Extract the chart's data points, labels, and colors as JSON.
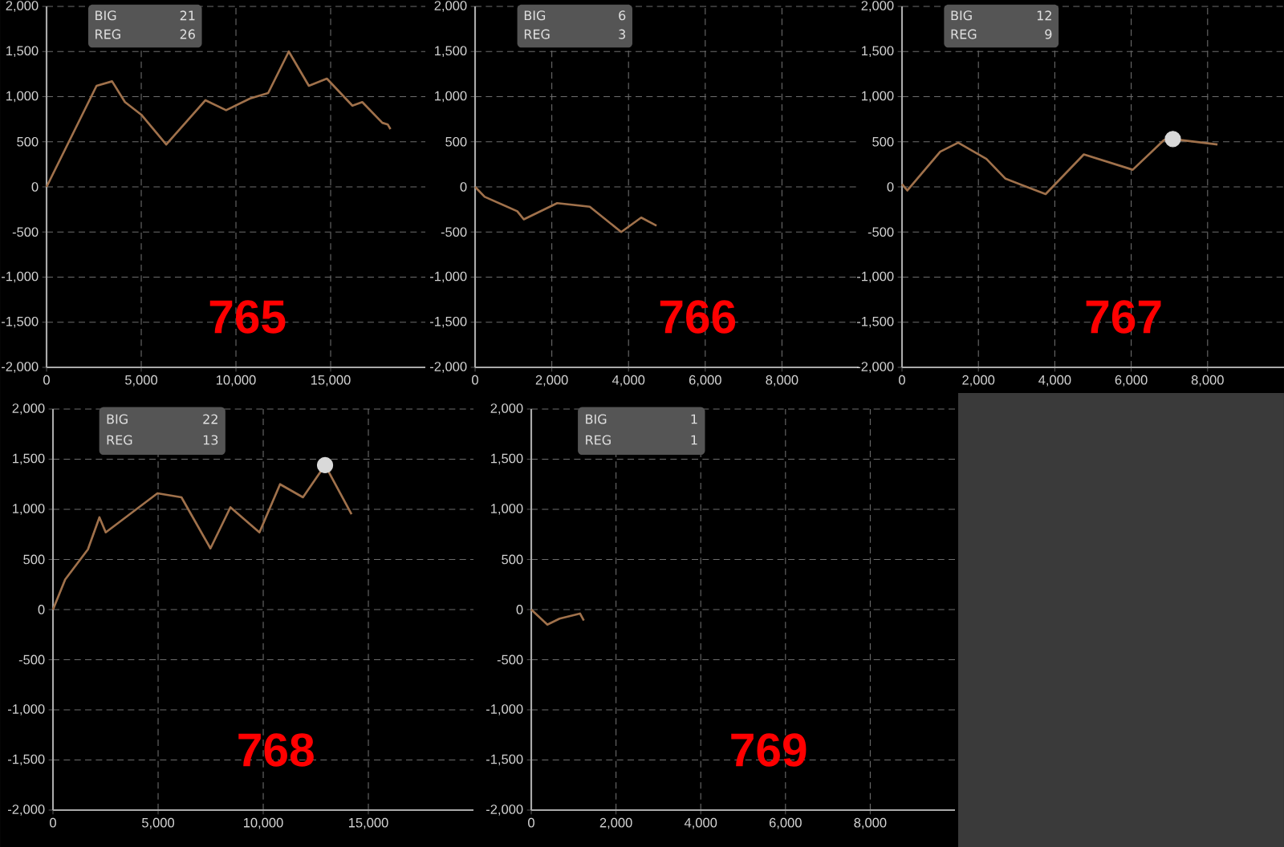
{
  "chart_data": [
    {
      "type": "line",
      "title": "765",
      "annotations": [
        "BIG",
        "21",
        "REG",
        "26"
      ],
      "grid": true,
      "xlim": [
        0,
        20000
      ],
      "xticks": [
        0,
        {
          "value": 5000,
          "label": "5,000"
        },
        {
          "value": 10000,
          "label": "10,000"
        },
        {
          "value": 15000,
          "label": "15,000"
        }
      ],
      "ylim": [
        -2000,
        2000
      ],
      "yticks": [
        {
          "value": -2000,
          "label": "-2,000"
        },
        {
          "value": -1500,
          "label": "-1,500"
        },
        {
          "value": -1000,
          "label": "-1,000"
        },
        -500,
        0,
        500,
        {
          "value": 1000,
          "label": "1,000"
        },
        {
          "value": 1500,
          "label": "1,500"
        },
        {
          "value": 2000,
          "label": "2,000"
        }
      ],
      "series": [
        {
          "color": "#a0714b",
          "x": [
            0,
            2640,
            3460,
            4140,
            5000,
            6320,
            8390,
            9480,
            10750,
            11700,
            12790,
            13850,
            14800,
            16150,
            16670,
            17730,
            18020,
            18160
          ],
          "values": [
            0,
            1120,
            1170,
            940,
            800,
            470,
            960,
            850,
            980,
            1040,
            1500,
            1120,
            1200,
            900,
            940,
            710,
            690,
            640
          ]
        }
      ]
    },
    {
      "type": "line",
      "title": "766",
      "annotations": [
        "BIG",
        "6",
        "REG",
        "3"
      ],
      "grid": true,
      "xlim": [
        0,
        10000
      ],
      "xticks": [
        0,
        {
          "value": 2000,
          "label": "2,000"
        },
        {
          "value": 4000,
          "label": "4,000"
        },
        {
          "value": 6000,
          "label": "6,000"
        },
        {
          "value": 8000,
          "label": "8,000"
        }
      ],
      "ylim": [
        -2000,
        2000
      ],
      "yticks": [
        {
          "value": -2000,
          "label": "-2,000"
        },
        {
          "value": -1500,
          "label": "-1,500"
        },
        {
          "value": -1000,
          "label": "-1,000"
        },
        -500,
        0,
        500,
        {
          "value": 1000,
          "label": "1,000"
        },
        {
          "value": 1500,
          "label": "1,500"
        },
        {
          "value": 2000,
          "label": "2,000"
        }
      ],
      "series": [
        {
          "color": "#a0714b",
          "x": [
            0,
            250,
            1100,
            1270,
            2140,
            2990,
            3810,
            4330,
            4730
          ],
          "values": [
            0,
            -110,
            -270,
            -360,
            -180,
            -220,
            -500,
            -340,
            -430
          ]
        }
      ]
    },
    {
      "type": "line",
      "title": "767",
      "annotations": [
        "BIG",
        "12",
        "REG",
        "9"
      ],
      "grid": true,
      "xlim": [
        0,
        10000
      ],
      "xticks": [
        0,
        {
          "value": 2000,
          "label": "2,000"
        },
        {
          "value": 4000,
          "label": "4,000"
        },
        {
          "value": 6000,
          "label": "6,000"
        },
        {
          "value": 8000,
          "label": "8,000"
        }
      ],
      "ylim": [
        -2000,
        2000
      ],
      "yticks": [
        {
          "value": -2000,
          "label": "-2,000"
        },
        {
          "value": -1500,
          "label": "-1,500"
        },
        {
          "value": -1000,
          "label": "-1,000"
        },
        -500,
        0,
        500,
        {
          "value": 1000,
          "label": "1,000"
        },
        {
          "value": 1500,
          "label": "1,500"
        },
        {
          "value": 2000,
          "label": "2,000"
        }
      ],
      "series": [
        {
          "color": "#a0714b",
          "x": [
            0,
            140,
            1000,
            1470,
            2210,
            2710,
            3760,
            4760,
            6040,
            6860,
            7090,
            8260
          ],
          "values": [
            30,
            -40,
            390,
            490,
            310,
            90,
            -80,
            360,
            190,
            520,
            530,
            470
          ]
        },
        {
          "type": "scatter",
          "color": "#d9d9d9",
          "x": [
            7090
          ],
          "values": [
            530
          ]
        }
      ]
    },
    {
      "type": "line",
      "title": "768",
      "annotations": [
        "BIG",
        "22",
        "REG",
        "13"
      ],
      "grid": true,
      "xlim": [
        0,
        20000
      ],
      "xticks": [
        0,
        {
          "value": 5000,
          "label": "5,000"
        },
        {
          "value": 10000,
          "label": "10,000"
        },
        {
          "value": 15000,
          "label": "15,000"
        }
      ],
      "ylim": [
        -2000,
        2000
      ],
      "yticks": [
        {
          "value": -2000,
          "label": "-2,000"
        },
        {
          "value": -1500,
          "label": "-1,500"
        },
        {
          "value": -1000,
          "label": "-1,000"
        },
        -500,
        0,
        500,
        {
          "value": 1000,
          "label": "1,000"
        },
        {
          "value": 1500,
          "label": "1,500"
        },
        {
          "value": 2000,
          "label": "2,000"
        }
      ],
      "series": [
        {
          "color": "#a0714b",
          "x": [
            0,
            580,
            1660,
            2210,
            2510,
            4970,
            6110,
            7490,
            8440,
            9820,
            10800,
            11890,
            12940,
            14200
          ],
          "values": [
            0,
            300,
            600,
            920,
            770,
            1160,
            1120,
            610,
            1020,
            770,
            1250,
            1120,
            1440,
            950
          ]
        },
        {
          "type": "scatter",
          "color": "#d9d9d9",
          "x": [
            12940
          ],
          "values": [
            1440
          ]
        }
      ]
    },
    {
      "type": "line",
      "title": "769",
      "annotations": [
        "BIG",
        "1",
        "REG",
        "1"
      ],
      "grid": true,
      "xlim": [
        0,
        10000
      ],
      "xticks": [
        0,
        {
          "value": 2000,
          "label": "2,000"
        },
        {
          "value": 4000,
          "label": "4,000"
        },
        {
          "value": 6000,
          "label": "6,000"
        },
        {
          "value": 8000,
          "label": "8,000"
        }
      ],
      "ylim": [
        -2000,
        2000
      ],
      "yticks": [
        {
          "value": -2000,
          "label": "-2,000"
        },
        {
          "value": -1500,
          "label": "-1,500"
        },
        {
          "value": -1000,
          "label": "-1,000"
        },
        -500,
        0,
        500,
        {
          "value": 1000,
          "label": "1,000"
        },
        {
          "value": 1500,
          "label": "1,500"
        },
        {
          "value": 2000,
          "label": "2,000"
        }
      ],
      "series": [
        {
          "color": "#a0714b",
          "x": [
            0,
            380,
            670,
            1150,
            1240
          ],
          "values": [
            0,
            -150,
            -90,
            -40,
            -110
          ]
        }
      ]
    }
  ]
}
